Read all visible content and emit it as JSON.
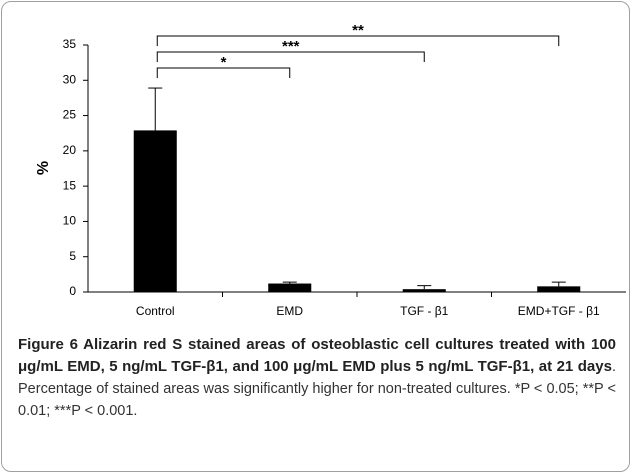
{
  "chart_data": {
    "type": "bar",
    "ylabel": "%",
    "categories": [
      "Control",
      "EMD",
      "TGF - β1",
      "EMD+TGF - β1"
    ],
    "values": [
      22.9,
      1.2,
      0.4,
      0.8
    ],
    "errors": [
      6,
      0.2,
      0.5,
      0.6
    ],
    "color": "#000000",
    "ylim": [
      0,
      35
    ],
    "yticks": [
      0,
      5,
      10,
      15,
      20,
      25,
      30,
      35
    ],
    "grid": false,
    "significance": [
      {
        "label": "*"
      },
      {
        "label": "***"
      },
      {
        "label": "**"
      }
    ]
  },
  "caption": {
    "title": "Figure 6 Alizarin red S stained areas of osteoblastic cell cultures treated with 100 μg/mL EMD, 5 ng/mL TGF-β1, and 100 μg/mL EMD plus 5 ng/mL TGF-β1, at 21 days",
    "text": ". Percentage of stained areas was significantly higher for non-treated cultures. *P < 0.05; **P < 0.01; ***P < 0.001."
  }
}
